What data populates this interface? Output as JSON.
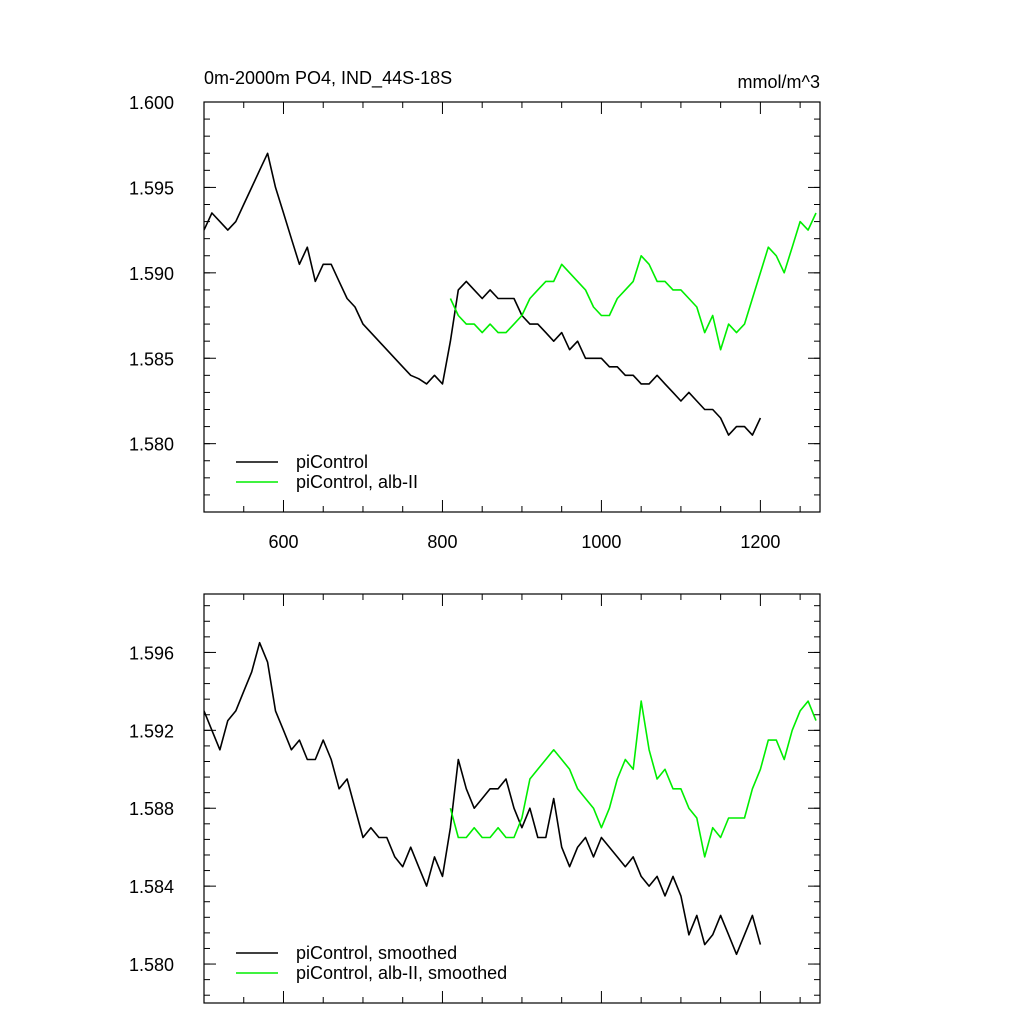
{
  "chart_data": [
    {
      "type": "line",
      "title": "0m-2000m PO4, IND_44S-18S",
      "units": "mmol/m^3",
      "xlim": [
        500,
        1275
      ],
      "ylim": [
        1.576,
        1.6
      ],
      "xticks": [
        600,
        800,
        1000,
        1200
      ],
      "xtick_labels": [
        "600",
        "800",
        "1000",
        "1200"
      ],
      "yticks": [
        1.58,
        1.585,
        1.59,
        1.595,
        1.6
      ],
      "ytick_labels": [
        "1.580",
        "1.585",
        "1.590",
        "1.595",
        "1.600"
      ],
      "legend_position": "bottom-left",
      "series": [
        {
          "name": "piControl",
          "color": "#000000",
          "x": [
            500,
            510,
            520,
            530,
            540,
            550,
            560,
            570,
            580,
            590,
            600,
            610,
            620,
            630,
            640,
            650,
            660,
            670,
            680,
            690,
            700,
            710,
            720,
            730,
            740,
            750,
            760,
            770,
            780,
            790,
            800,
            810,
            820,
            830,
            840,
            850,
            860,
            870,
            880,
            890,
            900,
            910,
            920,
            930,
            940,
            950,
            960,
            970,
            980,
            990,
            1000,
            1010,
            1020,
            1030,
            1040,
            1050,
            1060,
            1070,
            1080,
            1090,
            1100,
            1110,
            1120,
            1130,
            1140,
            1150,
            1160,
            1170,
            1180,
            1190,
            1200
          ],
          "y": [
            1.5925,
            1.5935,
            1.593,
            1.5925,
            1.593,
            1.594,
            1.595,
            1.596,
            1.597,
            1.595,
            1.5935,
            1.592,
            1.5905,
            1.5915,
            1.5895,
            1.5905,
            1.5905,
            1.5895,
            1.5885,
            1.588,
            1.587,
            1.5865,
            1.586,
            1.5855,
            1.585,
            1.5845,
            1.584,
            1.5838,
            1.5835,
            1.584,
            1.5835,
            1.586,
            1.589,
            1.5895,
            1.589,
            1.5885,
            1.589,
            1.5885,
            1.5885,
            1.5885,
            1.5875,
            1.587,
            1.587,
            1.5865,
            1.586,
            1.5865,
            1.5855,
            1.586,
            1.585,
            1.585,
            1.585,
            1.5845,
            1.5845,
            1.584,
            1.584,
            1.5835,
            1.5835,
            1.584,
            1.5835,
            1.583,
            1.5825,
            1.583,
            1.5825,
            1.582,
            1.582,
            1.5815,
            1.5805,
            1.581,
            1.581,
            1.5805,
            1.5815
          ]
        },
        {
          "name": "piControl, alb-II",
          "color": "#00ee00",
          "x": [
            810,
            820,
            830,
            840,
            850,
            860,
            870,
            880,
            890,
            900,
            910,
            920,
            930,
            940,
            950,
            960,
            970,
            980,
            990,
            1000,
            1010,
            1020,
            1030,
            1040,
            1050,
            1060,
            1070,
            1080,
            1090,
            1100,
            1110,
            1120,
            1130,
            1140,
            1150,
            1160,
            1170,
            1180,
            1190,
            1200,
            1210,
            1220,
            1230,
            1240,
            1250,
            1260,
            1270
          ],
          "y": [
            1.5885,
            1.5875,
            1.587,
            1.587,
            1.5865,
            1.587,
            1.5865,
            1.5865,
            1.587,
            1.5875,
            1.5885,
            1.589,
            1.5895,
            1.5895,
            1.5905,
            1.59,
            1.5895,
            1.589,
            1.588,
            1.5875,
            1.5875,
            1.5885,
            1.589,
            1.5895,
            1.591,
            1.5905,
            1.5895,
            1.5895,
            1.589,
            1.589,
            1.5885,
            1.588,
            1.5865,
            1.5875,
            1.5855,
            1.587,
            1.5865,
            1.587,
            1.5885,
            1.59,
            1.5915,
            1.591,
            1.59,
            1.5915,
            1.593,
            1.5925,
            1.5935
          ]
        }
      ]
    },
    {
      "type": "line",
      "xlim": [
        500,
        1275
      ],
      "ylim": [
        1.578,
        1.599
      ],
      "xticks": [
        600,
        800,
        1000,
        1200
      ],
      "yticks": [
        1.58,
        1.584,
        1.588,
        1.592,
        1.596
      ],
      "ytick_labels": [
        "1.580",
        "1.584",
        "1.588",
        "1.592",
        "1.596"
      ],
      "legend_position": "bottom-left",
      "series": [
        {
          "name": "piControl, smoothed",
          "color": "#000000",
          "x": [
            500,
            510,
            520,
            530,
            540,
            550,
            560,
            570,
            580,
            590,
            600,
            610,
            620,
            630,
            640,
            650,
            660,
            670,
            680,
            690,
            700,
            710,
            720,
            730,
            740,
            750,
            760,
            770,
            780,
            790,
            800,
            810,
            820,
            830,
            840,
            850,
            860,
            870,
            880,
            890,
            900,
            910,
            920,
            930,
            940,
            950,
            960,
            970,
            980,
            990,
            1000,
            1010,
            1020,
            1030,
            1040,
            1050,
            1060,
            1070,
            1080,
            1090,
            1100,
            1110,
            1120,
            1130,
            1140,
            1150,
            1160,
            1170,
            1180,
            1190,
            1200
          ],
          "y": [
            1.593,
            1.592,
            1.591,
            1.5925,
            1.593,
            1.594,
            1.595,
            1.5965,
            1.5955,
            1.593,
            1.592,
            1.591,
            1.5915,
            1.5905,
            1.5905,
            1.5915,
            1.5905,
            1.589,
            1.5895,
            1.588,
            1.5865,
            1.587,
            1.5865,
            1.5865,
            1.5855,
            1.585,
            1.586,
            1.585,
            1.584,
            1.5855,
            1.5845,
            1.587,
            1.5905,
            1.589,
            1.588,
            1.5885,
            1.589,
            1.589,
            1.5895,
            1.588,
            1.587,
            1.588,
            1.5865,
            1.5865,
            1.5885,
            1.586,
            1.585,
            1.586,
            1.5865,
            1.5855,
            1.5865,
            1.586,
            1.5855,
            1.585,
            1.5855,
            1.5845,
            1.584,
            1.5845,
            1.5835,
            1.5845,
            1.5835,
            1.5815,
            1.5825,
            1.581,
            1.5815,
            1.5825,
            1.5815,
            1.5805,
            1.5815,
            1.5825,
            1.581
          ]
        },
        {
          "name": "piControl, alb-II, smoothed",
          "color": "#00ee00",
          "x": [
            810,
            820,
            830,
            840,
            850,
            860,
            870,
            880,
            890,
            900,
            910,
            920,
            930,
            940,
            950,
            960,
            970,
            980,
            990,
            1000,
            1010,
            1020,
            1030,
            1040,
            1050,
            1060,
            1070,
            1080,
            1090,
            1100,
            1110,
            1120,
            1130,
            1140,
            1150,
            1160,
            1170,
            1180,
            1190,
            1200,
            1210,
            1220,
            1230,
            1240,
            1250,
            1260,
            1270
          ],
          "y": [
            1.588,
            1.5865,
            1.5865,
            1.587,
            1.5865,
            1.5865,
            1.587,
            1.5865,
            1.5865,
            1.5875,
            1.5895,
            1.59,
            1.5905,
            1.591,
            1.5905,
            1.59,
            1.589,
            1.5885,
            1.588,
            1.587,
            1.588,
            1.5895,
            1.5905,
            1.59,
            1.5935,
            1.591,
            1.5895,
            1.59,
            1.589,
            1.589,
            1.588,
            1.5875,
            1.5855,
            1.587,
            1.5865,
            1.5875,
            1.5875,
            1.5875,
            1.589,
            1.59,
            1.5915,
            1.5915,
            1.5905,
            1.592,
            1.593,
            1.5935,
            1.5925
          ]
        }
      ]
    }
  ]
}
